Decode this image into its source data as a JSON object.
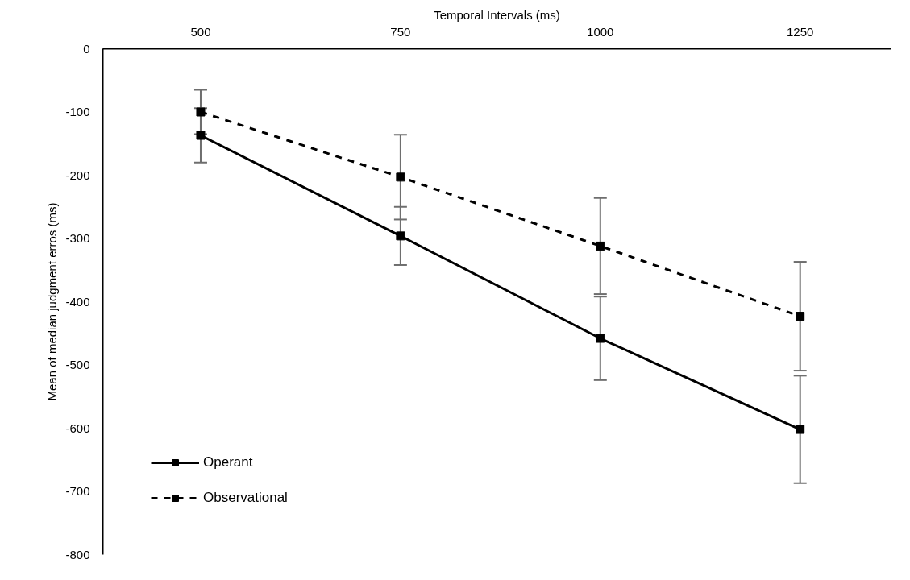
{
  "chart_data": {
    "type": "line",
    "xlabel": "Temporal Intervals (ms)",
    "ylabel": "Mean of median judgment erros (ms)",
    "categories": [
      "500",
      "750",
      "1000",
      "1250"
    ],
    "series": [
      {
        "name": "Operant",
        "color": "#000000",
        "line_style": "solid",
        "values": [
          -137,
          -296,
          -458,
          -602
        ],
        "errors": [
          43,
          46,
          66,
          85
        ]
      },
      {
        "name": "Observational",
        "color": "#000000",
        "line_style": "dashed",
        "values": [
          -100,
          -203,
          -312,
          -423
        ],
        "errors": [
          35,
          67,
          76,
          86
        ]
      }
    ],
    "ylim": [
      -800,
      0
    ],
    "yticks": [
      0,
      -100,
      -200,
      -300,
      -400,
      -500,
      -600,
      -700,
      -800
    ],
    "grid": false,
    "legend": "bottom left",
    "marker": "square"
  }
}
